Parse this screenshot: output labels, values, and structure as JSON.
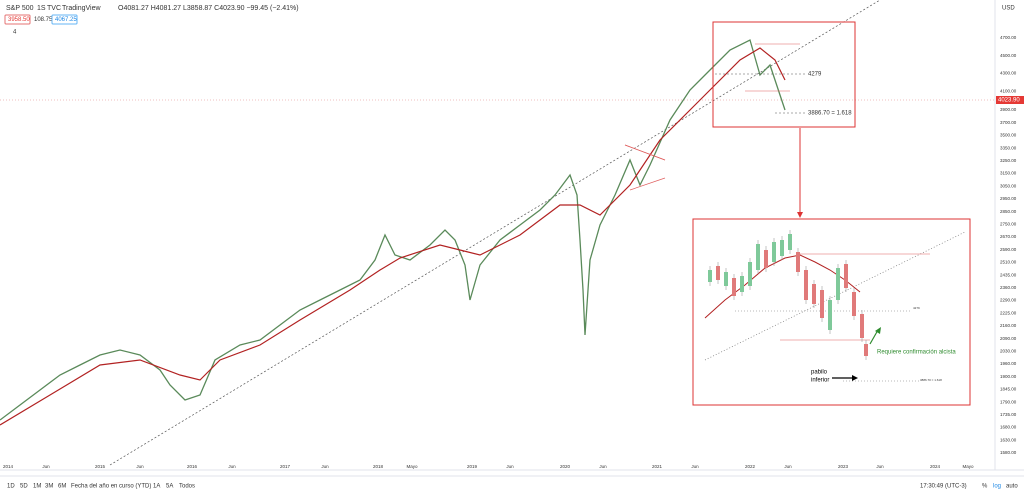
{
  "header": {
    "symbol": "S&P 500",
    "interval": "1S",
    "source": "TVC",
    "platform": "TradingView",
    "ohlc": "O4081.27 H4081.27 L3858.87 C4023.90 −99.45 (−2.41%)",
    "sell": "3958.50",
    "spread": "108.75",
    "buy": "4067.25",
    "indicators_count": "4"
  },
  "price_axis": {
    "currency": "USD",
    "labels": [
      "4700.00",
      "4500.00",
      "4300.00",
      "4100.00",
      "3900.00",
      "3700.00",
      "3500.00",
      "3350.00",
      "3250.00",
      "3150.00",
      "3050.00",
      "2950.00",
      "2850.00",
      "2750.00",
      "2670.00",
      "2590.00",
      "2510.00",
      "2435.00",
      "2360.00",
      "2290.00",
      "2225.00",
      "2160.00",
      "2090.00",
      "2030.00",
      "1960.00",
      "1900.00",
      "1845.00",
      "1790.00",
      "1735.00",
      "1680.00",
      "1630.00",
      "1580.00"
    ],
    "last_price": "4023.90"
  },
  "time_axis": [
    "2014",
    "Jun",
    "2015",
    "Jun",
    "2016",
    "Jun",
    "2017",
    "Jun",
    "2018",
    "Mayo",
    "2019",
    "Jun",
    "2020",
    "Jun",
    "2021",
    "Jun",
    "2022",
    "Jun",
    "2023",
    "Jun",
    "2024",
    "Mayo"
  ],
  "annotations": {
    "level": "4279",
    "target": "3886.70 = 1.618"
  },
  "inset": {
    "note": "Requiere confirmación alcista",
    "wick": [
      "pabilo",
      "inferior"
    ],
    "level": "4279",
    "target": "3886.70 = 1.618"
  },
  "toolbar": {
    "ranges": [
      "1D",
      "5D",
      "1M",
      "3M",
      "6M",
      "Fecha del año en curso (YTD)",
      "1A",
      "5A",
      "Todos"
    ],
    "clock": "17:30:49 (UTC-3)",
    "percent": "%",
    "log": "log",
    "auto": "auto"
  }
}
